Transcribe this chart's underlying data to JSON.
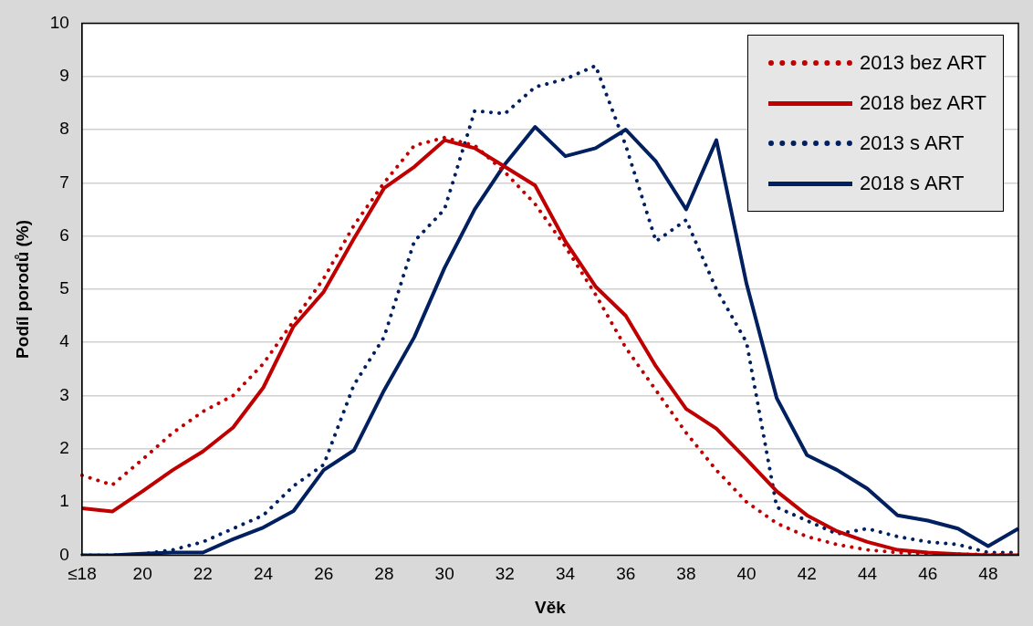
{
  "chart_data": {
    "type": "line",
    "xlabel": "Věk",
    "ylabel": "Podíl porodů (%)",
    "categories": [
      "≤18",
      null,
      "20",
      null,
      "22",
      null,
      "24",
      null,
      "26",
      null,
      "28",
      null,
      "30",
      null,
      "32",
      null,
      "34",
      null,
      "36",
      null,
      "38",
      null,
      "40",
      null,
      "42",
      null,
      "44",
      null,
      "46",
      null,
      "48",
      null
    ],
    "series": [
      {
        "name": "2013 bez ART",
        "color": "#c00000",
        "line_style": "dotted",
        "values": [
          1.5,
          1.32,
          1.8,
          2.3,
          2.7,
          3.0,
          3.6,
          4.4,
          5.2,
          6.2,
          7.0,
          7.7,
          7.85,
          7.7,
          7.2,
          6.6,
          5.8,
          4.9,
          3.9,
          3.1,
          2.3,
          1.6,
          1.0,
          0.6,
          0.35,
          0.2,
          0.1,
          0.05,
          0.03,
          0.02,
          0.01,
          0.0
        ]
      },
      {
        "name": "2018 bez ART",
        "color": "#c00000",
        "line_style": "solid",
        "values": [
          0.88,
          0.82,
          1.2,
          1.6,
          1.95,
          2.4,
          3.15,
          4.3,
          4.95,
          5.95,
          6.9,
          7.3,
          7.8,
          7.65,
          7.3,
          6.95,
          5.9,
          5.05,
          4.5,
          3.55,
          2.75,
          2.38,
          1.8,
          1.2,
          0.75,
          0.45,
          0.25,
          0.1,
          0.05,
          0.02,
          0.0,
          0.0
        ]
      },
      {
        "name": "2013 s ART",
        "color": "#002060",
        "line_style": "dotted",
        "values": [
          0.0,
          0.0,
          0.02,
          0.1,
          0.25,
          0.5,
          0.75,
          1.3,
          1.7,
          3.2,
          4.1,
          5.9,
          6.5,
          8.35,
          8.3,
          8.8,
          8.95,
          9.2,
          7.7,
          5.9,
          6.3,
          5.0,
          4.0,
          0.9,
          0.65,
          0.4,
          0.5,
          0.35,
          0.25,
          0.2,
          0.05,
          0.05
        ]
      },
      {
        "name": "2018 s ART",
        "color": "#002060",
        "line_style": "solid",
        "values": [
          0.0,
          0.0,
          0.03,
          0.05,
          0.05,
          0.3,
          0.52,
          0.83,
          1.6,
          1.97,
          3.1,
          4.1,
          5.4,
          6.5,
          7.35,
          8.05,
          7.5,
          7.65,
          8.0,
          7.4,
          6.5,
          7.8,
          5.1,
          2.95,
          1.88,
          1.6,
          1.25,
          0.75,
          0.65,
          0.5,
          0.17,
          0.5
        ]
      }
    ],
    "ylim": [
      0,
      10
    ],
    "yticks": [
      0,
      1,
      2,
      3,
      4,
      5,
      6,
      7,
      8,
      9,
      10
    ],
    "grid": "y",
    "legend": "top right",
    "marker": "none"
  }
}
